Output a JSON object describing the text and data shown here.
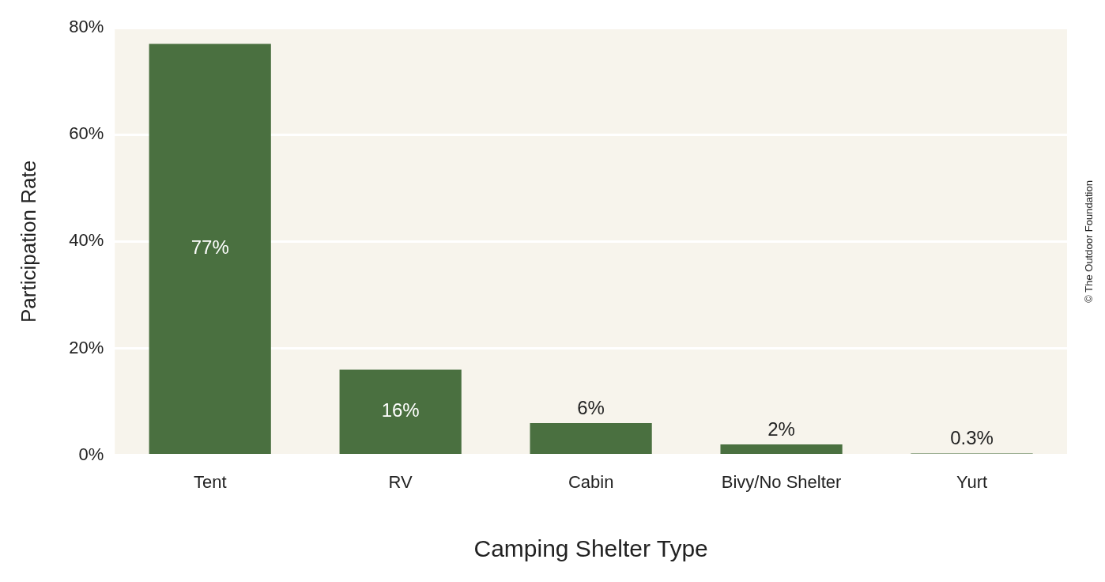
{
  "chart_data": {
    "type": "bar",
    "xlabel": "Camping Shelter Type",
    "ylabel": "Participation Rate",
    "categories": [
      "Tent",
      "RV",
      "Cabin",
      "Bivy/No Shelter",
      "Yurt"
    ],
    "values": [
      77,
      16,
      6,
      2,
      0.3
    ],
    "value_labels": [
      "77%",
      "16%",
      "6%",
      "2%",
      "0.3%"
    ],
    "color": "#4a7040",
    "ylim": [
      0,
      80
    ],
    "yticks": [
      {
        "value": 0,
        "label": "0%"
      },
      {
        "value": 20,
        "label": "20%"
      },
      {
        "value": 40,
        "label": "40%"
      },
      {
        "value": 60,
        "label": "60%"
      },
      {
        "value": 80,
        "label": "80%"
      }
    ],
    "grid": "y",
    "legend": false,
    "annotations": [
      "© The Outdoor Foundation"
    ]
  }
}
